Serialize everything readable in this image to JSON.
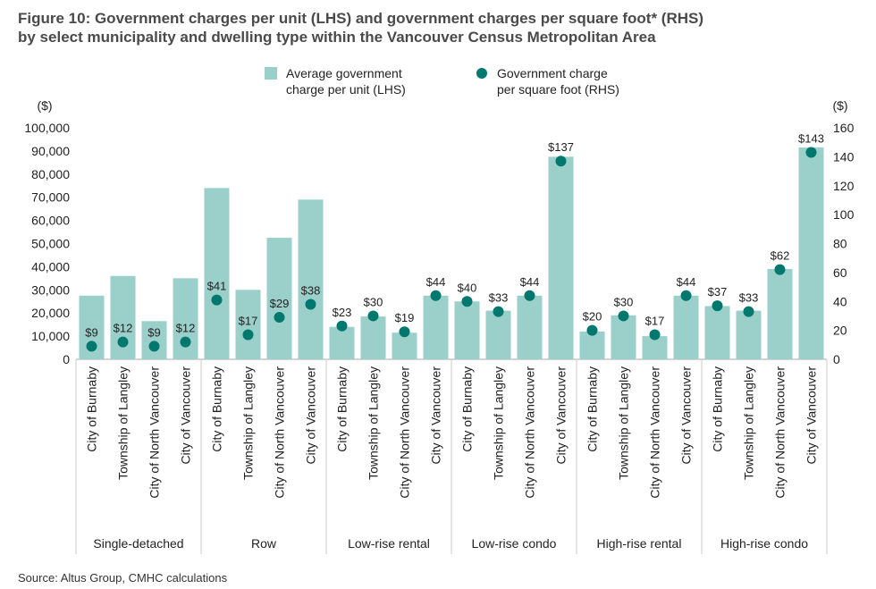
{
  "chart_data": {
    "type": "bar",
    "title_line1": "Figure 10: Government charges per unit (LHS) and government charges per square foot* (RHS)",
    "title_line2": "by select municipality and dwelling type within the Vancouver Census Metropolitan Area",
    "source": "Source: Altus Group, CMHC calculations",
    "ylabel_left": "($)",
    "ylabel_right": "($)",
    "ylim_left": [
      0,
      100000
    ],
    "ylim_right": [
      0,
      160
    ],
    "yticks_left": [
      "0",
      "10,000",
      "20,000",
      "30,000",
      "40,000",
      "50,000",
      "60,000",
      "70,000",
      "80,000",
      "90,000",
      "100,000"
    ],
    "yticks_right": [
      "0",
      "20",
      "40",
      "60",
      "80",
      "100",
      "120",
      "140",
      "160"
    ],
    "legend": [
      "Average government charge per unit (LHS)",
      "Government charge per square foot (RHS)"
    ],
    "legend_placement": "top",
    "grid": false,
    "colors": {
      "bar": "#9bd0ca",
      "dot": "#00786e"
    },
    "groups": [
      {
        "label": "Single-detached",
        "categories": [
          "City of Burnaby",
          "Township of Langley",
          "City of North Vancouver",
          "City of Vancouver"
        ],
        "per_unit": [
          27500,
          36000,
          16500,
          35000
        ],
        "per_sqft": [
          9,
          12,
          9,
          12
        ]
      },
      {
        "label": "Row",
        "categories": [
          "City of Burnaby",
          "Township of Langley",
          "City of North Vancouver",
          "City of Vancouver"
        ],
        "per_unit": [
          74000,
          30000,
          52500,
          69000
        ],
        "per_sqft": [
          41,
          17,
          29,
          38
        ]
      },
      {
        "label": "Low-rise rental",
        "categories": [
          "City of Burnaby",
          "Township of Langley",
          "City of North Vancouver",
          "City of Vancouver"
        ],
        "per_unit": [
          14000,
          18500,
          11500,
          27500
        ],
        "per_sqft": [
          23,
          30,
          19,
          44
        ]
      },
      {
        "label": "Low-rise condo",
        "categories": [
          "City of Burnaby",
          "Township of Langley",
          "City of North Vancouver",
          "City of Vancouver"
        ],
        "per_unit": [
          25000,
          21000,
          27500,
          87500
        ],
        "per_sqft": [
          40,
          33,
          44,
          137
        ]
      },
      {
        "label": "High-rise rental",
        "categories": [
          "City of Burnaby",
          "Township of Langley",
          "City of North Vancouver",
          "City of Vancouver"
        ],
        "per_unit": [
          12000,
          19000,
          10000,
          27500
        ],
        "per_sqft": [
          20,
          30,
          17,
          44
        ]
      },
      {
        "label": "High-rise condo",
        "categories": [
          "City of Burnaby",
          "Township of Langley",
          "City of North Vancouver",
          "City of Vancouver"
        ],
        "per_unit": [
          23000,
          21000,
          39000,
          91500
        ],
        "per_sqft": [
          37,
          33,
          62,
          143
        ]
      }
    ]
  }
}
